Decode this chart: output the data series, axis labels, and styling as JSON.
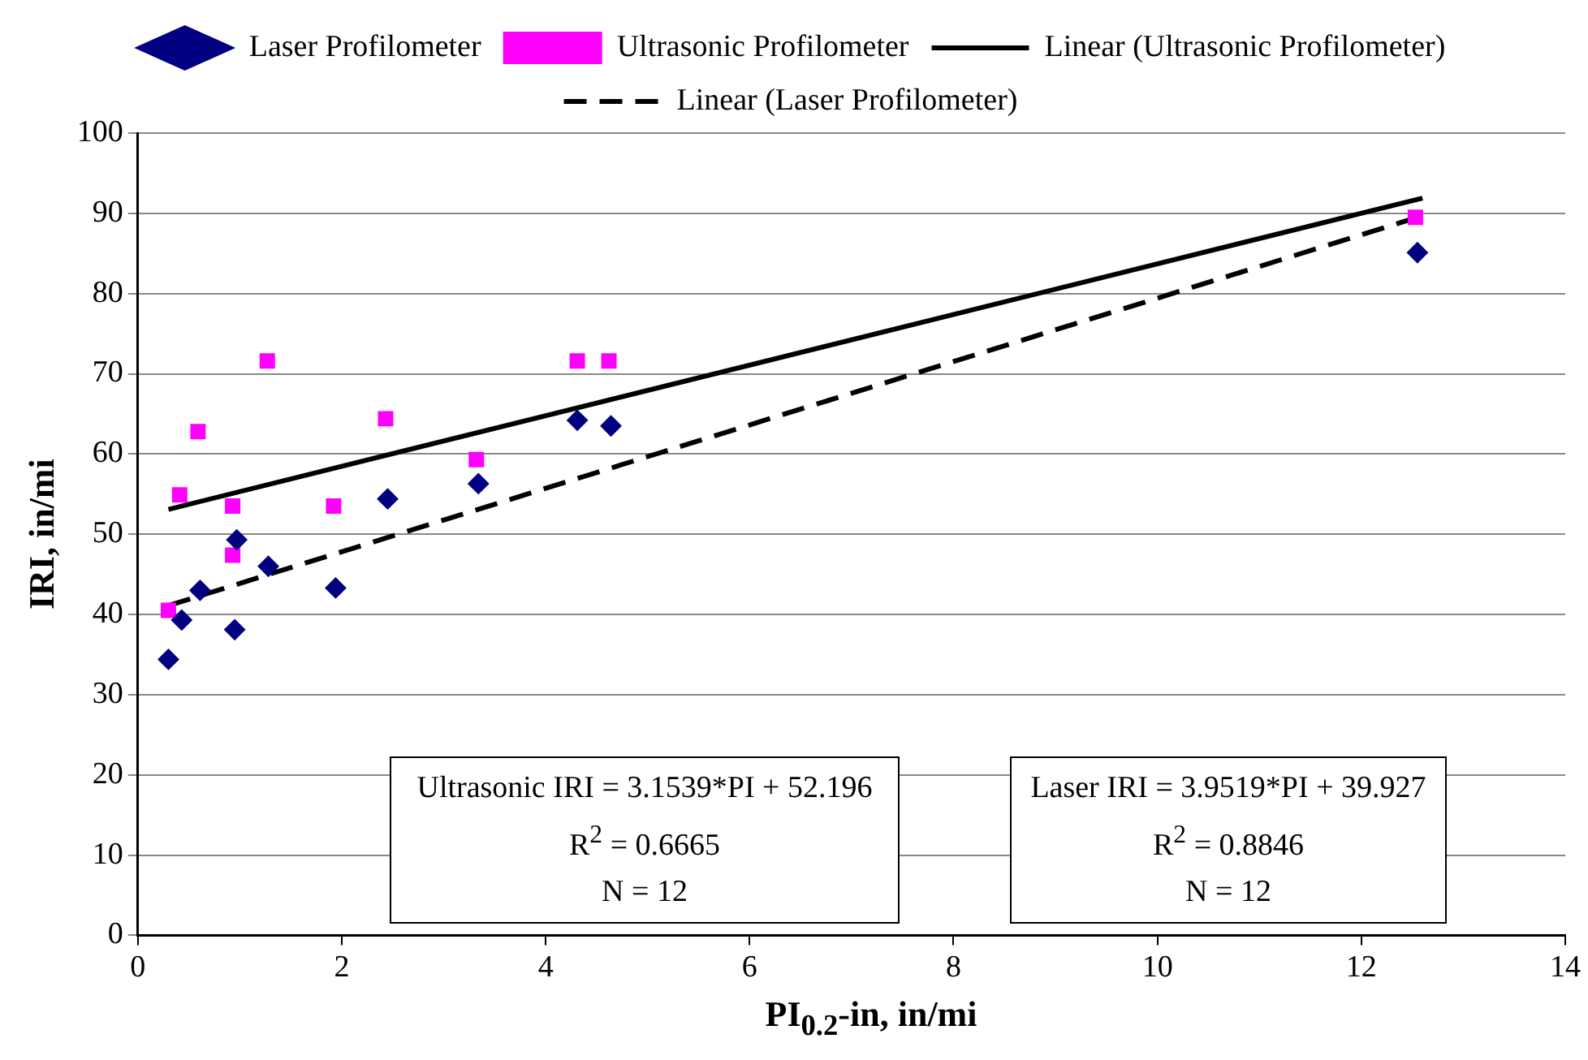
{
  "chart_data": {
    "type": "scatter",
    "xlabel": "PI$_{0.2}$-in, in/mi",
    "ylabel": "IRI, in/mi",
    "xlim": [
      0,
      14
    ],
    "xticks": [
      0,
      2,
      4,
      6,
      8,
      10,
      12,
      14
    ],
    "ylim": [
      0,
      100
    ],
    "yticks": [
      0,
      10,
      20,
      30,
      40,
      50,
      60,
      70,
      80,
      90,
      100
    ],
    "grid": "y",
    "legend": "top",
    "series": [
      {
        "name": "Laser Profilometer",
        "color": "#000080",
        "marker": "diamond",
        "x": [
          0.3,
          0.43,
          0.61,
          0.97,
          0.95,
          1.28,
          1.94,
          2.45,
          3.34,
          4.31,
          4.64,
          12.55
        ],
        "values": [
          34.4,
          39.3,
          43.0,
          49.3,
          38.1,
          46.0,
          43.3,
          54.4,
          56.3,
          64.2,
          63.5,
          85.1
        ]
      },
      {
        "name": "Ultrasonic Profilometer",
        "color": "#ff00ff",
        "marker": "square",
        "x": [
          0.3,
          0.41,
          0.59,
          0.93,
          0.93,
          1.27,
          1.92,
          2.43,
          3.32,
          4.31,
          4.62,
          12.53
        ],
        "values": [
          40.5,
          54.9,
          62.8,
          53.5,
          47.4,
          71.6,
          53.5,
          64.4,
          59.3,
          71.6,
          71.6,
          89.5
        ]
      },
      {
        "name": "Linear (Ultrasonic Profilometer)",
        "type": "line",
        "color": "#000000",
        "marker": "none",
        "line_style": "solid",
        "x": [
          0.3,
          12.6
        ],
        "values": [
          53.1,
          91.9
        ]
      },
      {
        "name": "Linear (Laser Profilometer)",
        "type": "line",
        "color": "#000000",
        "marker": "none",
        "line_style": "dashed",
        "x": [
          0.3,
          12.6
        ],
        "values": [
          41.1,
          89.7
        ]
      }
    ],
    "annotations": [
      "Ultrasonic IRI = 3.1539*PI + 52.196\nR$^{2}$ = 0.6665\nN = 12",
      "Laser IRI = 3.9519*PI + 39.927\nR$^{2}$ = 0.8846\nN = 12"
    ]
  }
}
